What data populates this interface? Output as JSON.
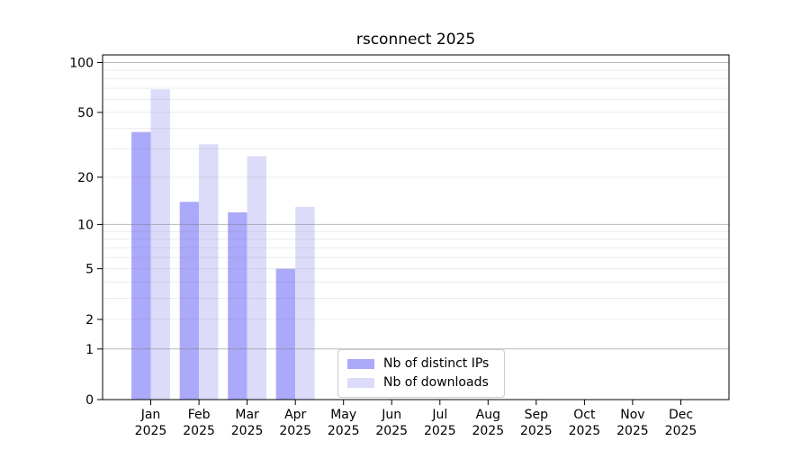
{
  "chart_data": {
    "type": "bar",
    "title": "rsconnect 2025",
    "categories": [
      "Jan",
      "Feb",
      "Mar",
      "Apr",
      "May",
      "Jun",
      "Jul",
      "Aug",
      "Sep",
      "Oct",
      "Nov",
      "Dec"
    ],
    "category_year": "2025",
    "series": [
      {
        "name": "Nb of distinct IPs",
        "color": "#aaa9fa",
        "values": [
          38,
          14,
          12,
          5,
          0,
          0,
          0,
          0,
          0,
          0,
          0,
          0
        ]
      },
      {
        "name": "Nb of downloads",
        "color": "#dcdbfa",
        "values": [
          69,
          32,
          27,
          13,
          0,
          0,
          0,
          0,
          0,
          0,
          0,
          0
        ]
      }
    ],
    "yscale": "log1p",
    "ylim": [
      0,
      111
    ],
    "yticks": [
      0,
      1,
      2,
      5,
      10,
      20,
      50,
      100
    ],
    "major_gridlines": [
      1,
      10,
      100
    ],
    "minor_gridlines": [
      2,
      3,
      4,
      5,
      6,
      7,
      8,
      9,
      20,
      30,
      40,
      50,
      60,
      70,
      80,
      90
    ],
    "grid": true,
    "legend_position": "lower center",
    "xlabel": "",
    "ylabel": ""
  }
}
